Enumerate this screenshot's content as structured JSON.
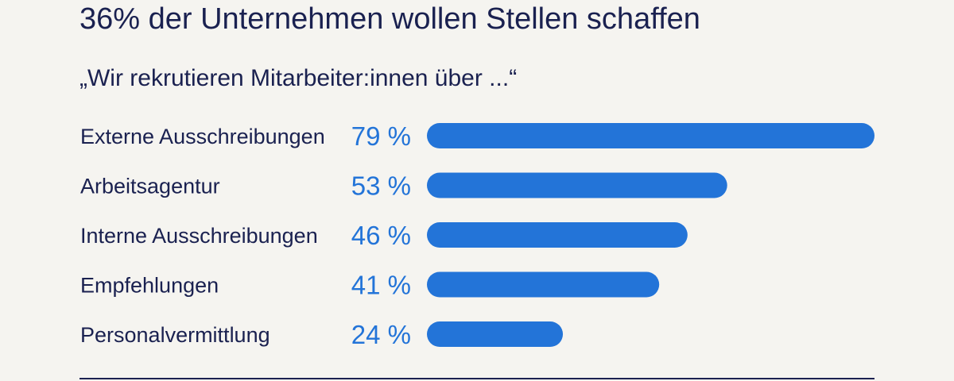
{
  "title": "36% der Unternehmen wollen Stellen schaffen",
  "subtitle": "„Wir rekrutieren Mitarbeiter:innen über ...“",
  "colors": {
    "bar": "#2374d8",
    "value_text": "#2374d8",
    "text": "#1a2150",
    "background": "#f5f4f0"
  },
  "chart_data": {
    "type": "bar",
    "orientation": "horizontal",
    "categories": [
      "Externe Ausschreibungen",
      "Arbeitsagentur",
      "Interne Ausschreibungen",
      "Empfehlungen",
      "Personalvermittlung"
    ],
    "values": [
      79,
      53,
      46,
      41,
      24
    ],
    "value_labels": [
      "79 %",
      "53 %",
      "46 %",
      "41 %",
      "24 %"
    ],
    "unit": "%",
    "xlim": [
      0,
      79
    ],
    "grid": false,
    "legend": "none"
  }
}
